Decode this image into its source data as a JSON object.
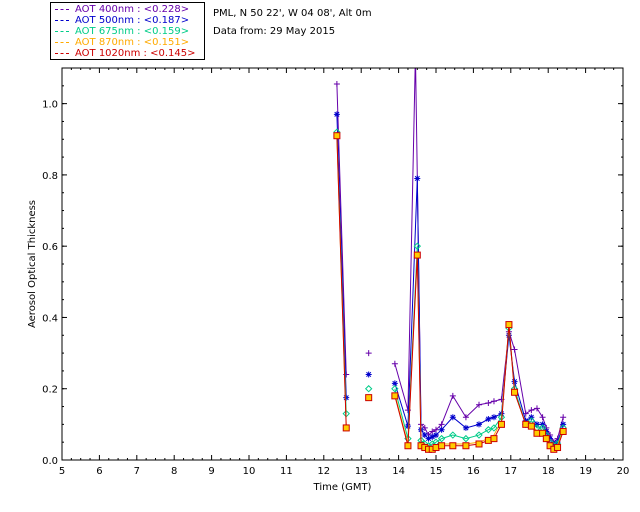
{
  "info": {
    "station": "PML, N 50 22', W 04 08', Alt 0m",
    "date": "Data from: 29 May 2015"
  },
  "chart_data": {
    "type": "line",
    "xlabel": "Time (GMT)",
    "ylabel": "Aerosol Optical Thickness",
    "xlim": [
      5,
      20
    ],
    "ylim": [
      0,
      1.1
    ],
    "xticks": [
      "5",
      "6",
      "7",
      "8",
      "9",
      "10",
      "11",
      "12",
      "13",
      "14",
      "15",
      "16",
      "17",
      "18",
      "19",
      "20"
    ],
    "yticks": [
      "0.0",
      "0.2",
      "0.4",
      "0.6",
      "0.8",
      "1.0"
    ],
    "legend_position": "top-left-outside",
    "series": [
      {
        "name": "AOT  400nm : <0.228>",
        "color": "#6600aa",
        "marker": "plus",
        "x": [
          12.35,
          12.6,
          13.2,
          13.9,
          14.25,
          14.45,
          14.6,
          14.7,
          14.8,
          14.9,
          15.0,
          15.15,
          15.45,
          15.8,
          16.15,
          16.4,
          16.55,
          16.75,
          16.95,
          17.1,
          17.4,
          17.55,
          17.7,
          17.85,
          17.95,
          18.05,
          18.15,
          18.25,
          18.4
        ],
        "y": [
          1.055,
          0.24,
          0.3,
          0.27,
          0.14,
          1.14,
          0.1,
          0.09,
          0.07,
          0.08,
          0.085,
          0.1,
          0.18,
          0.12,
          0.155,
          0.16,
          0.165,
          0.17,
          0.36,
          0.31,
          0.13,
          0.14,
          0.145,
          0.12,
          0.09,
          0.07,
          0.05,
          0.06,
          0.12
        ]
      },
      {
        "name": "AOT  500nm : <0.187>",
        "color": "#0000cc",
        "marker": "asterisk",
        "x": [
          12.35,
          12.6,
          13.2,
          13.9,
          14.25,
          14.5,
          14.6,
          14.7,
          14.8,
          14.9,
          15.0,
          15.15,
          15.45,
          15.8,
          16.15,
          16.4,
          16.55,
          16.75,
          16.95,
          17.1,
          17.4,
          17.55,
          17.7,
          17.85,
          17.95,
          18.05,
          18.15,
          18.25,
          18.4
        ],
        "y": [
          0.97,
          0.175,
          0.24,
          0.215,
          0.095,
          0.79,
          0.085,
          0.07,
          0.06,
          0.065,
          0.07,
          0.085,
          0.12,
          0.09,
          0.1,
          0.115,
          0.12,
          0.13,
          0.35,
          0.22,
          0.11,
          0.12,
          0.1,
          0.1,
          0.08,
          0.06,
          0.045,
          0.05,
          0.1
        ]
      },
      {
        "name": "AOT  675nm : <0.159>",
        "color": "#00cc88",
        "marker": "diamond",
        "x": [
          12.35,
          12.6,
          13.2,
          13.9,
          14.25,
          14.5,
          14.6,
          14.7,
          14.8,
          14.9,
          15.0,
          15.15,
          15.45,
          15.8,
          16.15,
          16.4,
          16.55,
          16.75,
          16.95,
          17.1,
          17.4,
          17.55,
          17.7,
          17.85,
          17.95,
          18.05,
          18.15,
          18.25,
          18.4
        ],
        "y": [
          0.92,
          0.13,
          0.2,
          0.2,
          0.06,
          0.6,
          0.055,
          0.045,
          0.04,
          0.045,
          0.05,
          0.06,
          0.07,
          0.06,
          0.07,
          0.085,
          0.09,
          0.12,
          0.37,
          0.2,
          0.1,
          0.11,
          0.09,
          0.09,
          0.07,
          0.05,
          0.04,
          0.045,
          0.09
        ]
      },
      {
        "name": "AOT  870nm : <0.151>",
        "color": "#ffaa00",
        "marker": "none",
        "x": [
          12.35,
          12.6,
          13.2,
          13.9,
          14.25,
          14.5,
          14.6,
          14.7,
          14.8,
          14.9,
          15.0,
          15.15,
          15.45,
          15.8,
          16.15,
          16.4,
          16.55,
          16.75,
          16.95,
          17.1,
          17.4,
          17.55,
          17.7,
          17.85,
          17.95,
          18.05,
          18.15,
          18.25,
          18.4
        ],
        "y": [
          0.91,
          0.095,
          0.18,
          0.185,
          0.045,
          0.58,
          0.045,
          0.04,
          0.035,
          0.035,
          0.04,
          0.045,
          0.045,
          0.045,
          0.05,
          0.06,
          0.07,
          0.11,
          0.38,
          0.19,
          0.1,
          0.1,
          0.08,
          0.08,
          0.06,
          0.04,
          0.035,
          0.04,
          0.085
        ]
      },
      {
        "name": "AOT 1020nm : <0.145>",
        "color": "#cc0000",
        "marker": "square",
        "x": [
          12.35,
          12.6,
          13.2,
          13.9,
          14.25,
          14.5,
          14.6,
          14.7,
          14.8,
          14.9,
          15.0,
          15.15,
          15.45,
          15.8,
          16.15,
          16.4,
          16.55,
          16.75,
          16.95,
          17.1,
          17.4,
          17.55,
          17.7,
          17.85,
          17.95,
          18.05,
          18.15,
          18.25,
          18.4
        ],
        "y": [
          0.91,
          0.09,
          0.175,
          0.18,
          0.04,
          0.575,
          0.04,
          0.035,
          0.03,
          0.03,
          0.035,
          0.04,
          0.04,
          0.04,
          0.045,
          0.055,
          0.06,
          0.1,
          0.38,
          0.19,
          0.1,
          0.095,
          0.075,
          0.075,
          0.06,
          0.04,
          0.03,
          0.035,
          0.08
        ]
      }
    ]
  }
}
